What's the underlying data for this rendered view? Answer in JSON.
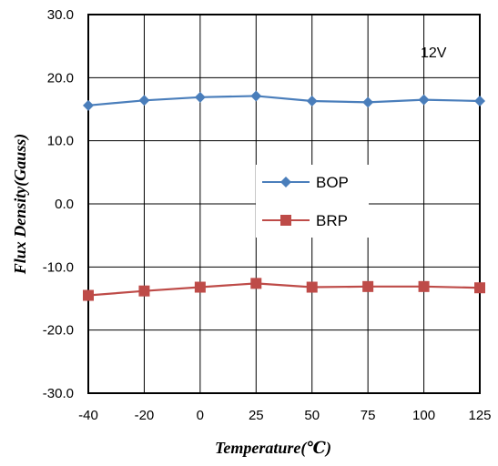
{
  "chart_data": {
    "type": "line",
    "x": [
      -40,
      -20,
      0,
      25,
      50,
      75,
      100,
      125
    ],
    "x_tick_labels": [
      "-40",
      "-20",
      "0",
      "25",
      "50",
      "75",
      "100",
      "125"
    ],
    "y_tick_labels": [
      "30.0",
      "20.0",
      "10.0",
      "0.0",
      "-10.0",
      "-20.0",
      "-30.0"
    ],
    "ylim": [
      -30,
      30
    ],
    "xlabel": "Temperature(℃)",
    "ylabel": "Flux Density(Gauss)",
    "annotation": "12V",
    "grid": true,
    "legend_position": "center",
    "series": [
      {
        "name": "BOP",
        "color": "#4a7ebb",
        "marker": "diamond",
        "values": [
          15.6,
          16.4,
          16.9,
          17.1,
          16.3,
          16.1,
          16.5,
          16.3
        ]
      },
      {
        "name": "BRP",
        "color": "#be4b48",
        "marker": "square",
        "values": [
          -14.5,
          -13.8,
          -13.2,
          -12.6,
          -13.2,
          -13.1,
          -13.1,
          -13.3
        ]
      }
    ]
  }
}
